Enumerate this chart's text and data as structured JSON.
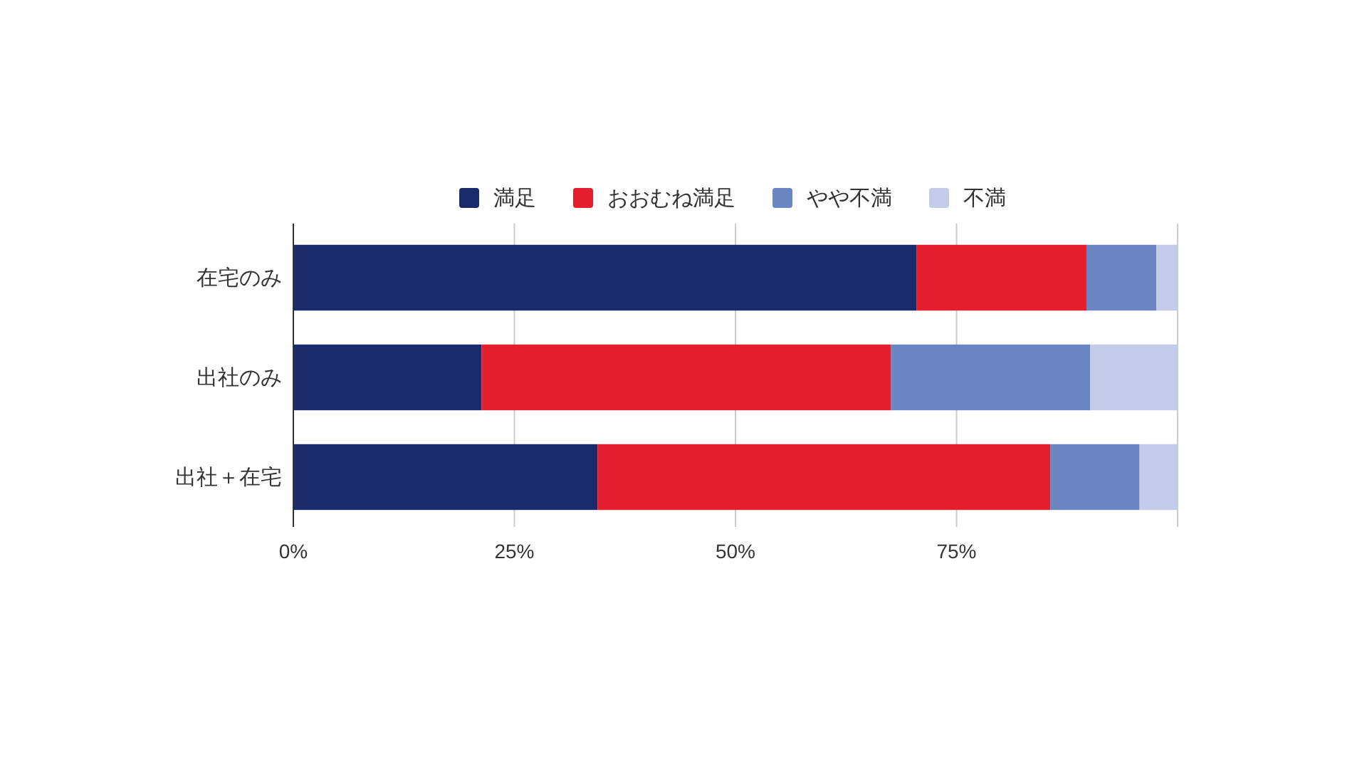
{
  "chart_data": {
    "type": "bar",
    "orientation": "horizontal",
    "stacked": true,
    "categories": [
      "在宅のみ",
      "出社のみ",
      "出社＋在宅"
    ],
    "series": [
      {
        "name": "満足",
        "color": "#1b2a6b",
        "values": [
          70.5,
          21.3,
          34.4
        ]
      },
      {
        "name": "おおむね満足",
        "color": "#e31e2d",
        "values": [
          19.2,
          46.3,
          51.2
        ]
      },
      {
        "name": "やや不満",
        "color": "#6a85c2",
        "values": [
          7.9,
          22.5,
          10.1
        ]
      },
      {
        "name": "不満",
        "color": "#c3cbe8",
        "values": [
          2.4,
          9.9,
          4.3
        ]
      }
    ],
    "xlim": [
      0,
      100
    ],
    "xticks": [
      {
        "value": 0,
        "label": "0%"
      },
      {
        "value": 25,
        "label": "25%"
      },
      {
        "value": 50,
        "label": "50%"
      },
      {
        "value": 75,
        "label": "75%"
      },
      {
        "value": 100,
        "label": null
      }
    ],
    "grid": "x",
    "legend": "top"
  }
}
